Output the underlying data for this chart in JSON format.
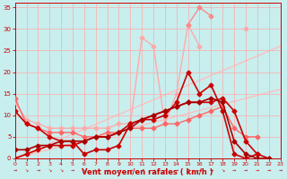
{
  "bg": "#c8eeee",
  "grid_color": "#ffaaaa",
  "xlabel": "Vent moyen/en rafales ( km/h )",
  "xlabel_color": "#cc0000",
  "tick_color": "#cc0000",
  "xlim": [
    0,
    23
  ],
  "ylim": [
    0,
    36
  ],
  "yticks": [
    0,
    5,
    10,
    15,
    20,
    25,
    30,
    35
  ],
  "xticks": [
    0,
    1,
    2,
    3,
    4,
    5,
    6,
    7,
    8,
    9,
    10,
    11,
    12,
    13,
    14,
    15,
    16,
    17,
    18,
    19,
    20,
    21,
    22,
    23
  ],
  "lines": [
    {
      "comment": "Light pink diagonal ref line 1 - steeper slope going from bottom-left to top-right",
      "x": [
        0,
        23
      ],
      "y": [
        0,
        26
      ],
      "color": "#ffbbbb",
      "lw": 0.9,
      "marker": null,
      "ms": 0,
      "zorder": 1
    },
    {
      "comment": "Light pink diagonal ref line 2 - shallower slope",
      "x": [
        0,
        23
      ],
      "y": [
        0,
        16
      ],
      "color": "#ffbbbb",
      "lw": 0.9,
      "marker": null,
      "ms": 0,
      "zorder": 1
    },
    {
      "comment": "Light pink line with markers - high peaks at x=11,14-16, drops after x=20",
      "x": [
        0,
        1,
        2,
        3,
        4,
        5,
        6,
        7,
        8,
        9,
        10,
        11,
        12,
        13,
        14,
        15,
        16,
        17,
        18,
        19,
        20,
        21,
        22,
        23
      ],
      "y": [
        13,
        9,
        8,
        7,
        7,
        7,
        7,
        7,
        7,
        8,
        8,
        28,
        26,
        8,
        15,
        31,
        26,
        null,
        null,
        null,
        null,
        null,
        null,
        null
      ],
      "color": "#ffaaaa",
      "lw": 1.0,
      "marker": "D",
      "ms": 2.5,
      "zorder": 3
    },
    {
      "comment": "Pink line with markers - rises from x=14 peaks at x=16(35) then down",
      "x": [
        14,
        15,
        16,
        17,
        18,
        19,
        20,
        21,
        22,
        23
      ],
      "y": [
        null,
        31,
        35,
        33,
        null,
        null,
        null,
        null,
        null,
        null
      ],
      "color": "#ff8888",
      "lw": 1.0,
      "marker": "D",
      "ms": 2.5,
      "zorder": 3
    },
    {
      "comment": "Pink line continuing right side - peak at x=20 around 30, then drops to x=22 ~5",
      "x": [
        19,
        20,
        21,
        22,
        23
      ],
      "y": [
        null,
        30,
        null,
        null,
        null
      ],
      "color": "#ffaaaa",
      "lw": 1.0,
      "marker": "D",
      "ms": 2.5,
      "zorder": 3
    },
    {
      "comment": "Medium red line with markers - starts ~14, stays flat ~6-8, rises to ~12 at x=18",
      "x": [
        0,
        1,
        2,
        3,
        4,
        5,
        6,
        7,
        8,
        9,
        10,
        11,
        12,
        13,
        14,
        15,
        16,
        17,
        18,
        19,
        20,
        21,
        22,
        23
      ],
      "y": [
        14,
        8,
        7,
        6,
        6,
        6,
        5,
        5,
        6,
        6,
        7,
        7,
        7,
        8,
        8,
        9,
        10,
        11,
        12,
        7,
        5,
        5,
        null,
        null
      ],
      "color": "#ff6666",
      "lw": 1.0,
      "marker": "D",
      "ms": 2.5,
      "zorder": 4
    },
    {
      "comment": "Dark red line 1 - starts ~11, dips to 1 at x=6, rises to 20 at x=15, drops",
      "x": [
        0,
        1,
        2,
        3,
        4,
        5,
        6,
        7,
        8,
        9,
        10,
        11,
        12,
        13,
        14,
        15,
        16,
        17,
        18,
        19,
        20,
        21
      ],
      "y": [
        11,
        8,
        7,
        5,
        4,
        4,
        1,
        2,
        2,
        3,
        8,
        9,
        9,
        10,
        13,
        20,
        15,
        17,
        11,
        1,
        0,
        1
      ],
      "color": "#cc0000",
      "lw": 1.2,
      "marker": "D",
      "ms": 2.5,
      "zorder": 5
    },
    {
      "comment": "Dark red line 2 - gradually rises from 0 to ~14 at x=18, then drops to 1",
      "x": [
        0,
        1,
        2,
        3,
        4,
        5,
        6,
        7,
        8,
        9,
        10,
        11,
        12,
        13,
        14,
        15,
        16,
        17,
        18,
        19,
        20,
        21,
        22
      ],
      "y": [
        0,
        1,
        2,
        3,
        3,
        3,
        4,
        5,
        5,
        6,
        8,
        9,
        10,
        11,
        12,
        13,
        13,
        13,
        14,
        11,
        4,
        1,
        0
      ],
      "color": "#cc0000",
      "lw": 1.2,
      "marker": "D",
      "ms": 2.5,
      "zorder": 5
    },
    {
      "comment": "Very dark red line - rises from 0 to peak ~14 at x=18, drops sharply",
      "x": [
        0,
        1,
        2,
        3,
        4,
        5,
        6,
        7,
        8,
        9,
        10,
        11,
        12,
        13,
        14,
        15,
        16,
        17,
        18,
        19,
        20,
        21,
        22
      ],
      "y": [
        2,
        2,
        3,
        3,
        4,
        4,
        4,
        5,
        5,
        6,
        7,
        9,
        10,
        11,
        12,
        13,
        13,
        14,
        13,
        4,
        1,
        0,
        0
      ],
      "color": "#aa0000",
      "lw": 1.2,
      "marker": "D",
      "ms": 2.5,
      "zorder": 5
    }
  ]
}
